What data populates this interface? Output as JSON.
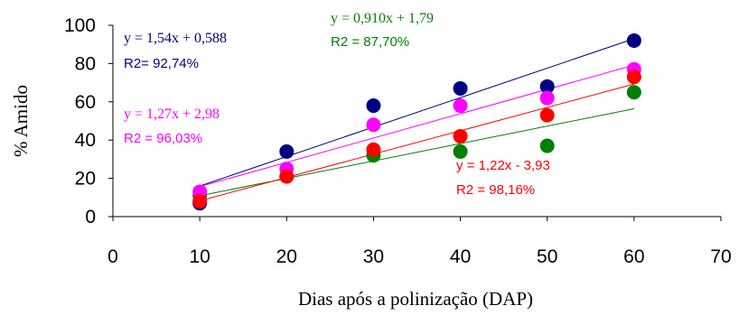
{
  "chart_data": {
    "type": "scatter",
    "xlabel": "Dias após a polinização (DAP)",
    "ylabel": "% Amido",
    "xlim": [
      0,
      70
    ],
    "ylim": [
      0,
      100
    ],
    "xticks": [
      0,
      10,
      20,
      30,
      40,
      50,
      60,
      70
    ],
    "yticks": [
      0,
      20,
      40,
      60,
      80,
      100
    ],
    "grid": false,
    "legend": "none",
    "series": [
      {
        "color": "#000080",
        "x": [
          10,
          20,
          30,
          40,
          50,
          60
        ],
        "y": [
          7,
          34,
          58,
          67,
          68,
          92
        ],
        "trendline": {
          "slope": 1.54,
          "intercept": 0.588
        },
        "equation": "y = 1,54x + 0,588",
        "r2": "R2= 92,74%"
      },
      {
        "color": "#008000",
        "x": [
          10,
          20,
          30,
          40,
          50,
          60
        ],
        "y": [
          11,
          21,
          32,
          34,
          37,
          65
        ],
        "trendline": {
          "slope": 0.91,
          "intercept": 1.79
        },
        "equation": "y = 0,910x + 1,79",
        "r2": "R2 = 87,70%"
      },
      {
        "color": "#ff00ff",
        "x": [
          10,
          20,
          30,
          40,
          50,
          60
        ],
        "y": [
          13,
          25,
          48,
          58,
          62,
          77
        ],
        "trendline": {
          "slope": 1.27,
          "intercept": 2.98
        },
        "equation": "y = 1,27x + 2,98",
        "r2": "R2 = 96,03%"
      },
      {
        "color": "#ff0000",
        "x": [
          10,
          20,
          30,
          40,
          50,
          60
        ],
        "y": [
          8,
          21,
          35,
          42,
          53,
          73
        ],
        "trendline": {
          "slope": 1.22,
          "intercept": -3.93
        },
        "equation": "y = 1,22x - 3,93",
        "r2": "R2 = 98,16%"
      }
    ]
  }
}
